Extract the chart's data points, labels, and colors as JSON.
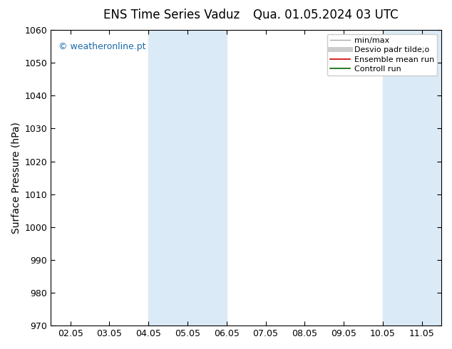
{
  "title_left": "ENS Time Series Vaduz",
  "title_right": "Qua. 01.05.2024 03 UTC",
  "ylabel": "Surface Pressure (hPa)",
  "ylim": [
    970,
    1060
  ],
  "yticks": [
    970,
    980,
    990,
    1000,
    1010,
    1020,
    1030,
    1040,
    1050,
    1060
  ],
  "xtick_labels": [
    "02.05",
    "03.05",
    "04.05",
    "05.05",
    "06.05",
    "07.05",
    "08.05",
    "09.05",
    "10.05",
    "11.05"
  ],
  "shaded_bands": [
    {
      "xmin": 2,
      "xmax": 3,
      "color": "#daeaf6"
    },
    {
      "xmin": 3,
      "xmax": 4,
      "color": "#daeaf6"
    },
    {
      "xmin": 8,
      "xmax": 9,
      "color": "#daeaf6"
    },
    {
      "xmin": 9,
      "xmax": 10,
      "color": "#daeaf6"
    }
  ],
  "watermark": "© weatheronline.pt",
  "watermark_color": "#1a6aaa",
  "legend_items": [
    {
      "label": "min/max",
      "color": "#aaaaaa",
      "lw": 1.0,
      "ls": "-"
    },
    {
      "label": "Desvio padr tilde;o",
      "color": "#cccccc",
      "lw": 5,
      "ls": "-"
    },
    {
      "label": "Ensemble mean run",
      "color": "#cc0000",
      "lw": 1.2,
      "ls": "-"
    },
    {
      "label": "Controll run",
      "color": "#006600",
      "lw": 1.2,
      "ls": "-"
    }
  ],
  "background_color": "#ffffff",
  "plot_bg_color": "#ffffff",
  "title_fontsize": 12,
  "axis_label_fontsize": 10,
  "tick_fontsize": 9
}
